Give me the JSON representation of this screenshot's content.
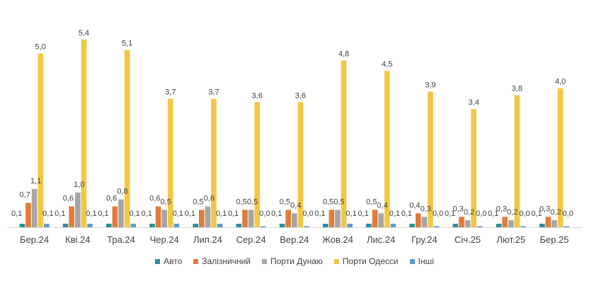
{
  "chart_data": {
    "type": "bar",
    "title": "",
    "xlabel": "",
    "ylabel": "",
    "ylim": [
      0,
      5.6
    ],
    "grid": false,
    "legend_position": "bottom",
    "categories": [
      "Бер.24",
      "Кві.24",
      "Тра.24",
      "Чер.24",
      "Лип.24",
      "Сер.24",
      "Вер.24",
      "Жов.24",
      "Лис.24",
      "Гру.24",
      "Січ.25",
      "Лют.25",
      "Бер.25"
    ],
    "series": [
      {
        "name": "Авто",
        "color": "#2E8B99",
        "values": [
          0.1,
          0.1,
          0.1,
          0.1,
          0.1,
          0.1,
          0.1,
          0.1,
          0.1,
          0.1,
          0.1,
          0.1,
          0.1
        ],
        "labels": [
          "0,1",
          "0,1",
          "0,1",
          "0,1",
          "0,1",
          "0,1",
          "0,1",
          "0,1",
          "0,1",
          "0,1",
          "0,1",
          "0,1",
          "0,1"
        ]
      },
      {
        "name": "Залізничний",
        "color": "#E07B39",
        "values": [
          0.7,
          0.6,
          0.6,
          0.6,
          0.5,
          0.5,
          0.5,
          0.5,
          0.5,
          0.4,
          0.3,
          0.3,
          0.3
        ],
        "labels": [
          "0,7",
          "0,6",
          "0,6",
          "0,6",
          "0,5",
          "0,5",
          "0,5",
          "0,5",
          "0,5",
          "0,4",
          "0,3",
          "0,3",
          "0,3"
        ]
      },
      {
        "name": "Порти Дунаю",
        "color": "#A5A5A5",
        "values": [
          1.1,
          1.0,
          0.8,
          0.5,
          0.6,
          0.5,
          0.4,
          0.5,
          0.4,
          0.3,
          0.2,
          0.2,
          0.2
        ],
        "labels": [
          "1,1",
          "1,0",
          "0,8",
          "0,5",
          "0,6",
          "0,5",
          "0,4",
          "0,5",
          "0,4",
          "0,3",
          "0,2",
          "0,2",
          "0,2"
        ]
      },
      {
        "name": "Порти Одесси",
        "color": "#F2C744",
        "values": [
          5.0,
          5.4,
          5.1,
          3.7,
          3.7,
          3.6,
          3.6,
          4.8,
          4.5,
          3.9,
          3.4,
          3.8,
          4.0
        ],
        "labels": [
          "5,0",
          "5,4",
          "5,1",
          "3,7",
          "3,7",
          "3,6",
          "3,6",
          "4,8",
          "4,5",
          "3,9",
          "3,4",
          "3,8",
          "4,0"
        ]
      },
      {
        "name": "Інші",
        "color": "#5B9BD5",
        "values": [
          0.1,
          0.1,
          0.1,
          0.1,
          0.1,
          0.0,
          0.0,
          0.1,
          0.1,
          0.0,
          0.0,
          0.0,
          0.0
        ],
        "labels": [
          "0,1",
          "0,1",
          "0,1",
          "0,1",
          "0,1",
          "0,0",
          "0,0",
          "0,1",
          "0,1",
          "0,0",
          "0,0",
          "0,0",
          "0,0"
        ]
      }
    ]
  }
}
